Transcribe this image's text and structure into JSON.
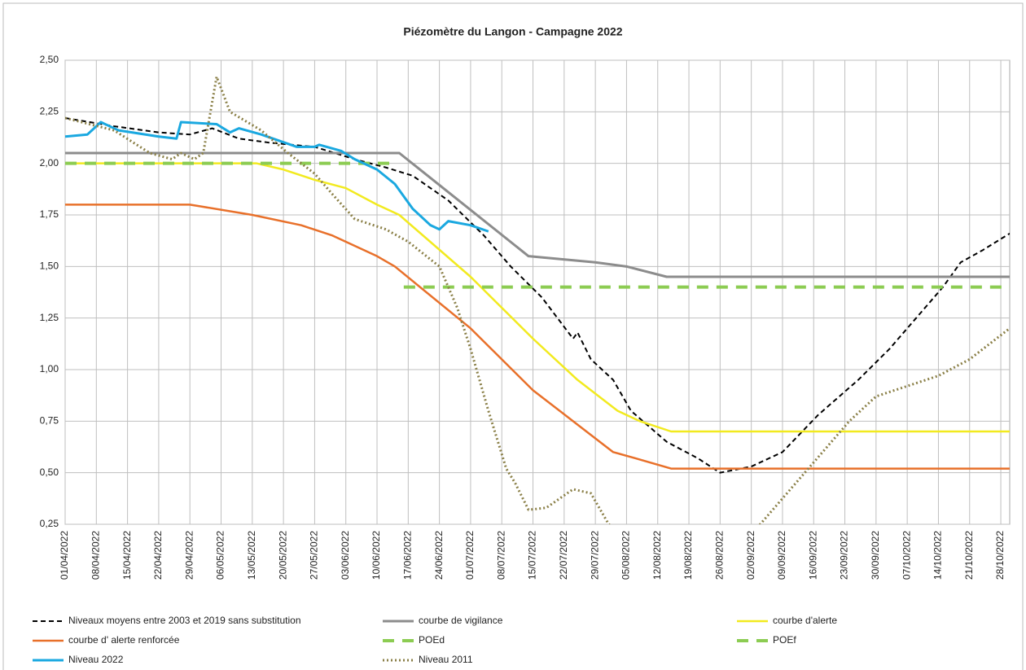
{
  "chart_data": {
    "type": "line",
    "title": "Piézomètre du Langon - Campagne 2022",
    "xlim": [
      "01/04/2022",
      "30/10/2022"
    ],
    "xticks": [
      "01/04/2022",
      "08/04/2022",
      "15/04/2022",
      "22/04/2022",
      "29/04/2022",
      "06/05/2022",
      "13/05/2022",
      "20/05/2022",
      "27/05/2022",
      "03/06/2022",
      "10/06/2022",
      "17/06/2022",
      "24/06/2022",
      "01/07/2022",
      "08/07/2022",
      "15/07/2022",
      "22/07/2022",
      "29/07/2022",
      "05/08/2022",
      "12/08/2022",
      "19/08/2022",
      "26/08/2022",
      "02/09/2022",
      "09/09/2022",
      "16/09/2022",
      "23/09/2022",
      "30/09/2022",
      "07/10/2022",
      "14/10/2022",
      "21/10/2022",
      "28/10/2022"
    ],
    "ylim": [
      0.25,
      2.5
    ],
    "yticks": [
      {
        "value": 0.25,
        "label": "0,25"
      },
      {
        "value": 0.5,
        "label": "0,50"
      },
      {
        "value": 0.75,
        "label": "0,75"
      },
      {
        "value": 1,
        "label": "1,00"
      },
      {
        "value": 1.25,
        "label": "1,25"
      },
      {
        "value": 1.5,
        "label": "1,50"
      },
      {
        "value": 1.75,
        "label": "1,75"
      },
      {
        "value": 2,
        "label": "2,00"
      },
      {
        "value": 2.25,
        "label": "2,25"
      },
      {
        "value": 2.5,
        "label": "2,50"
      }
    ],
    "grid": true,
    "legend": "bottom",
    "series": [
      {
        "name": "Niveaux moyens entre 2003 et 2019 sans substitution",
        "color": "#000000",
        "style": "dashed",
        "width": 2,
        "x": [
          "01/04/2022",
          "12/04/2022",
          "22/04/2022",
          "29/04/2022",
          "04/05/2022",
          "10/05/2022",
          "17/05/2022",
          "27/05/2022",
          "05/06/2022",
          "12/06/2022",
          "18/06/2022",
          "26/06/2022",
          "04/07/2022",
          "10/07/2022",
          "17/07/2022",
          "24/07/2022",
          "25/07/2022",
          "28/07/2022",
          "02/08/2022",
          "06/08/2022",
          "14/08/2022",
          "21/08/2022",
          "26/08/2022",
          "02/09/2022",
          "09/09/2022",
          "17/09/2022",
          "26/09/2022",
          "03/10/2022",
          "09/10/2022",
          "15/10/2022",
          "19/10/2022",
          "24/10/2022",
          "30/10/2022"
        ],
        "values": [
          2.22,
          2.18,
          2.15,
          2.14,
          2.17,
          2.12,
          2.1,
          2.08,
          2.02,
          1.98,
          1.94,
          1.82,
          1.65,
          1.5,
          1.35,
          1.15,
          1.18,
          1.05,
          0.95,
          0.8,
          0.65,
          0.57,
          0.5,
          0.53,
          0.6,
          0.78,
          0.95,
          1.1,
          1.25,
          1.4,
          1.52,
          1.58,
          1.66
        ]
      },
      {
        "name": "courbe de vigilance",
        "color": "#8c8c8c",
        "style": "solid",
        "width": 3,
        "x": [
          "01/04/2022",
          "15/06/2022",
          "14/07/2022",
          "29/07/2022",
          "05/08/2022",
          "14/08/2022",
          "30/10/2022"
        ],
        "values": [
          2.05,
          2.05,
          1.55,
          1.52,
          1.5,
          1.45,
          1.45
        ]
      },
      {
        "name": "courbe d'alerte",
        "color": "#f2ea1f",
        "style": "solid",
        "width": 2.5,
        "x": [
          "01/04/2022",
          "14/05/2022",
          "20/05/2022",
          "27/05/2022",
          "03/06/2022",
          "10/06/2022",
          "15/06/2022",
          "01/07/2022",
          "15/07/2022",
          "25/07/2022",
          "03/08/2022",
          "08/08/2022",
          "15/08/2022",
          "30/10/2022"
        ],
        "values": [
          2,
          2,
          1.97,
          1.92,
          1.88,
          1.8,
          1.75,
          1.45,
          1.15,
          0.95,
          0.8,
          0.75,
          0.7,
          0.7
        ]
      },
      {
        "name": "courbe d' alerte renforcée",
        "color": "#e8702a",
        "style": "solid",
        "width": 2.5,
        "x": [
          "01/04/2022",
          "29/04/2022",
          "13/05/2022",
          "24/05/2022",
          "31/05/2022",
          "10/06/2022",
          "14/06/2022",
          "01/07/2022",
          "15/07/2022",
          "24/07/2022",
          "02/08/2022",
          "07/08/2022",
          "15/08/2022",
          "30/10/2022"
        ],
        "values": [
          1.8,
          1.8,
          1.75,
          1.7,
          1.65,
          1.55,
          1.5,
          1.2,
          0.9,
          0.75,
          0.6,
          0.57,
          0.52,
          0.52
        ]
      },
      {
        "name": "POEd",
        "color": "#8ccc52",
        "style": "longdash",
        "width": 4,
        "x": [
          "01/04/2022",
          "13/06/2022"
        ],
        "values": [
          2,
          2
        ]
      },
      {
        "name": "POEf",
        "color": "#8ccc52",
        "style": "longdash",
        "width": 4,
        "x": [
          "16/06/2022",
          "30/10/2022"
        ],
        "values": [
          1.4,
          1.4
        ]
      },
      {
        "name": "Niveau 2022",
        "color": "#1aa8e0",
        "style": "solid",
        "width": 3,
        "x": [
          "01/04/2022",
          "06/04/2022",
          "09/04/2022",
          "13/04/2022",
          "22/04/2022",
          "26/04/2022",
          "27/04/2022",
          "05/05/2022",
          "08/05/2022",
          "10/05/2022",
          "15/05/2022",
          "23/05/2022",
          "27/05/2022",
          "28/05/2022",
          "02/06/2022",
          "05/06/2022",
          "10/06/2022",
          "14/06/2022",
          "18/06/2022",
          "22/06/2022",
          "24/06/2022",
          "26/06/2022",
          "01/07/2022",
          "05/07/2022"
        ],
        "values": [
          2.13,
          2.14,
          2.2,
          2.16,
          2.13,
          2.12,
          2.2,
          2.19,
          2.15,
          2.17,
          2.14,
          2.08,
          2.08,
          2.09,
          2.06,
          2.02,
          1.97,
          1.9,
          1.78,
          1.7,
          1.68,
          1.72,
          1.7,
          1.67
        ]
      },
      {
        "name": "Niveau 2011",
        "color": "#8b8048",
        "style": "dotted",
        "width": 3,
        "x": [
          "01/04/2022",
          "12/04/2022",
          "20/04/2022",
          "25/04/2022",
          "27/04/2022",
          "30/04/2022",
          "02/05/2022",
          "05/05/2022",
          "08/05/2022",
          "15/05/2022",
          "21/05/2022",
          "27/05/2022",
          "31/05/2022",
          "05/06/2022",
          "12/06/2022",
          "17/06/2022",
          "24/06/2022",
          "28/06/2022",
          "01/07/2022",
          "05/07/2022",
          "09/07/2022",
          "11/07/2022",
          "14/07/2022",
          "18/07/2022",
          "24/07/2022",
          "28/07/2022",
          "01/08/2022",
          "10/08/2022",
          "31/08/2022",
          "04/09/2022",
          "12/09/2022",
          "18/09/2022",
          "24/09/2022",
          "30/09/2022",
          "07/10/2022",
          "14/10/2022",
          "21/10/2022",
          "30/10/2022"
        ],
        "values": [
          2.22,
          2.16,
          2.05,
          2.02,
          2.05,
          2.02,
          2.05,
          2.42,
          2.25,
          2.16,
          2.05,
          1.95,
          1.85,
          1.73,
          1.68,
          1.62,
          1.5,
          1.3,
          1.1,
          0.8,
          0.52,
          0.45,
          0.32,
          0.33,
          0.42,
          0.4,
          0.25,
          0.1,
          0.1,
          0.25,
          0.45,
          0.6,
          0.75,
          0.87,
          0.92,
          0.97,
          1.05,
          1.2
        ]
      }
    ]
  }
}
